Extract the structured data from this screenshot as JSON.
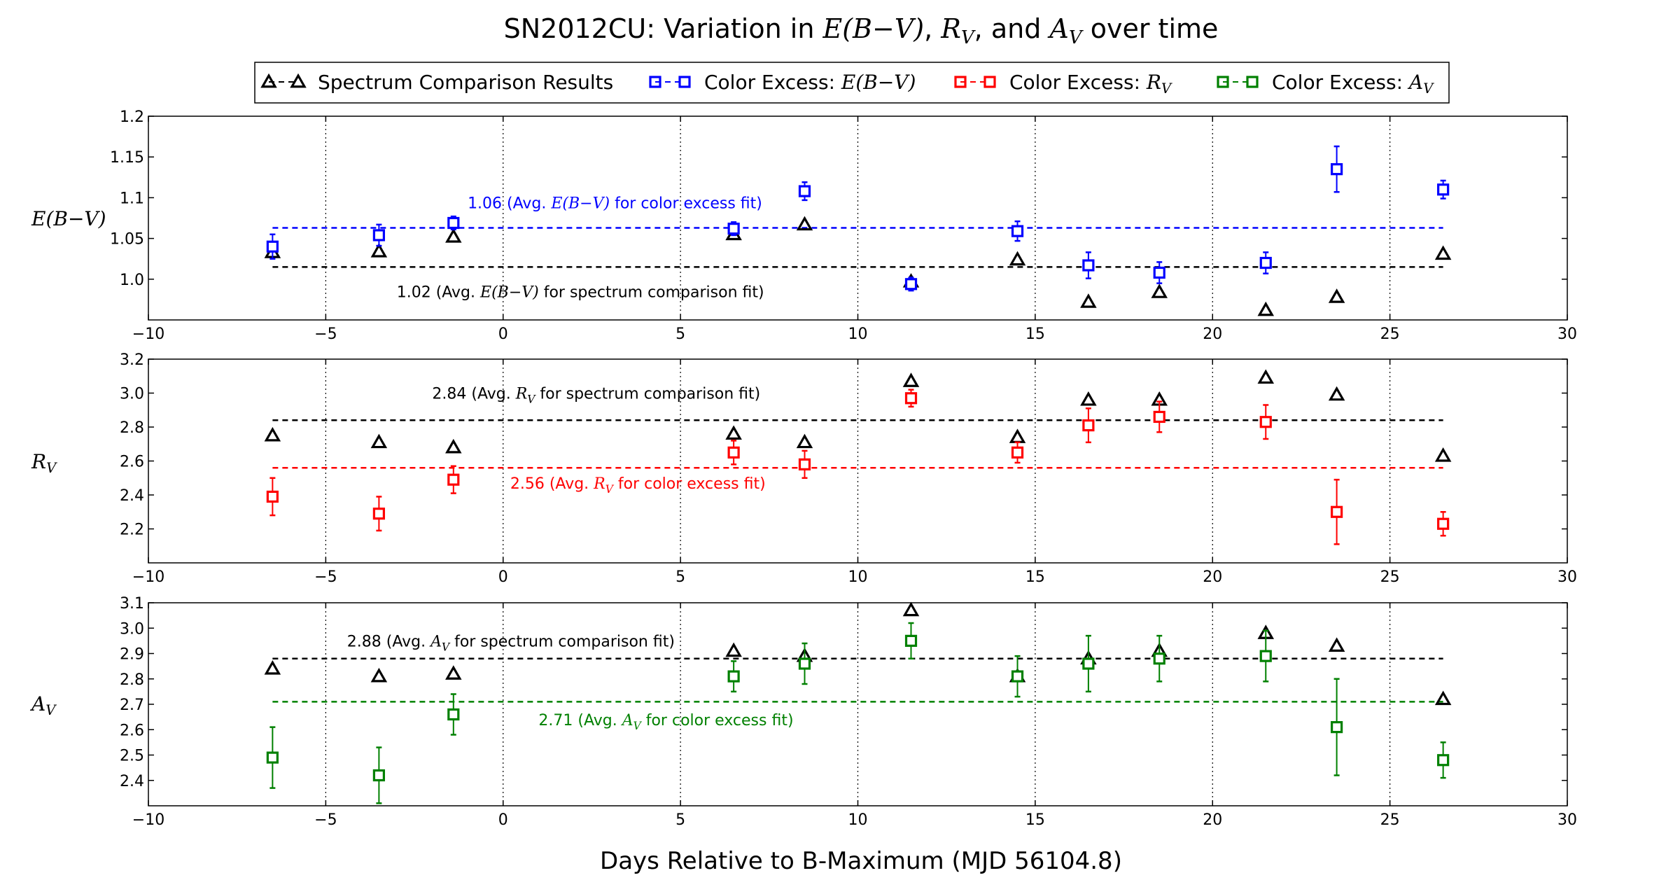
{
  "figure": {
    "title_prefix": "SN2012CU: Variation in ",
    "title_ebv": "E(B−V)",
    "title_sep1": ", ",
    "title_rv_base": "R",
    "title_rv_sub": "V",
    "title_sep2": ", and ",
    "title_av_base": "A",
    "title_av_sub": "V",
    "title_suffix": " over time",
    "xlabel": "Days Relative to B-Maximum (MJD 56104.8)"
  },
  "legend": {
    "entries": [
      {
        "name": "spectrum",
        "text": "Spectrum Comparison Results",
        "math": "",
        "sub": "",
        "color": "#000000",
        "marker": "triangle"
      },
      {
        "name": "ebv",
        "text": "Color Excess: ",
        "math": "E(B−V)",
        "sub": "",
        "color": "#0000ff",
        "marker": "square"
      },
      {
        "name": "rv",
        "text": "Color Excess: ",
        "math": "R",
        "sub": "V",
        "color": "#ff0000",
        "marker": "square"
      },
      {
        "name": "av",
        "text": "Color Excess: ",
        "math": "A",
        "sub": "V",
        "color": "#008000",
        "marker": "square"
      }
    ]
  },
  "chart_data": [
    {
      "type": "scatter",
      "ylabel": "E(B−V)",
      "xlim": [
        -10,
        30
      ],
      "ylim": [
        0.95,
        1.2
      ],
      "xticks": [
        -10,
        -5,
        0,
        5,
        10,
        15,
        20,
        25,
        30
      ],
      "xtick_labels": [
        "−10",
        "−5",
        "0",
        "5",
        "10",
        "15",
        "20",
        "25",
        "30"
      ],
      "yticks": [
        1.0,
        1.05,
        1.1,
        1.15,
        1.2
      ],
      "ytick_labels": [
        "1.0",
        "1.05",
        "1.1",
        "1.15",
        "1.2"
      ],
      "grid_x": true,
      "series": [
        {
          "key": "spectrum",
          "color": "#000000",
          "marker": "triangle",
          "x": [
            -6.5,
            -3.5,
            -1.4,
            6.5,
            8.5,
            11.5,
            14.5,
            16.5,
            18.5,
            21.5,
            23.5,
            26.5
          ],
          "y": [
            1.033,
            1.034,
            1.052,
            1.055,
            1.067,
            0.997,
            1.024,
            0.972,
            0.984,
            0.962,
            0.978,
            1.031
          ]
        },
        {
          "key": "ebv",
          "color": "#0000ff",
          "marker": "square",
          "x": [
            -6.5,
            -3.5,
            -1.4,
            6.5,
            8.5,
            11.5,
            14.5,
            16.5,
            18.5,
            21.5,
            26.5
          ],
          "y": [
            1.04,
            1.054,
            1.069,
            1.062,
            1.108,
            0.994,
            1.059,
            1.017,
            1.008,
            1.02,
            1.11
          ],
          "err": [
            0.015,
            0.013,
            0.008,
            0.008,
            0.011,
            0.008,
            0.012,
            0.016,
            0.013,
            0.013,
            0.011
          ]
        },
        {
          "key": "ebv",
          "color": "#0000ff",
          "marker": "square",
          "x": [
            23.5
          ],
          "y": [
            1.135
          ],
          "err": [
            0.028
          ]
        }
      ],
      "hlines": [
        {
          "y": 1.063,
          "color": "#0000ff",
          "xmin": -6.5,
          "xmax": 26.5,
          "label_value": "1.06",
          "label_pre": " (Avg. ",
          "label_math": "E(B−V)",
          "label_sub": "",
          "label_post": " for color excess fit)",
          "label_x": -1.0,
          "label_y": 1.094
        },
        {
          "y": 1.015,
          "color": "#000000",
          "xmin": -6.5,
          "xmax": 26.5,
          "label_value": "1.02",
          "label_pre": " (Avg. ",
          "label_math": "E(B−V)",
          "label_sub": "",
          "label_post": " for spectrum comparison fit)",
          "label_x": -3.0,
          "label_y": 0.985
        }
      ]
    },
    {
      "type": "scatter",
      "ylabel": "R",
      "ylabel_sub": "V",
      "xlim": [
        -10,
        30
      ],
      "ylim": [
        2.0,
        3.2
      ],
      "xticks": [
        -10,
        -5,
        0,
        5,
        10,
        15,
        20,
        25,
        30
      ],
      "xtick_labels": [
        "−10",
        "−5",
        "0",
        "5",
        "10",
        "15",
        "20",
        "25",
        "30"
      ],
      "yticks": [
        2.2,
        2.4,
        2.6,
        2.8,
        3.0,
        3.2
      ],
      "ytick_labels": [
        "2.2",
        "2.4",
        "2.6",
        "2.8",
        "3.0",
        "3.2"
      ],
      "grid_x": true,
      "series": [
        {
          "key": "spectrum",
          "color": "#000000",
          "marker": "triangle",
          "x": [
            -6.5,
            -3.5,
            -1.4,
            6.5,
            8.5,
            11.5,
            14.5,
            16.5,
            18.5,
            21.5,
            23.5,
            26.5
          ],
          "y": [
            2.75,
            2.71,
            2.68,
            2.76,
            2.71,
            3.07,
            2.74,
            2.96,
            2.96,
            3.09,
            2.99,
            2.63
          ]
        },
        {
          "key": "rv",
          "color": "#ff0000",
          "marker": "square",
          "x": [
            -6.5,
            -3.5,
            -1.4,
            6.5,
            8.5,
            11.5,
            14.5,
            16.5,
            18.5,
            21.5,
            23.5,
            26.5
          ],
          "y": [
            2.39,
            2.29,
            2.49,
            2.65,
            2.58,
            2.97,
            2.65,
            2.81,
            2.86,
            2.83,
            2.3,
            2.23
          ],
          "err": [
            0.11,
            0.1,
            0.08,
            0.07,
            0.08,
            0.05,
            0.06,
            0.1,
            0.09,
            0.1,
            0.19,
            0.07
          ]
        }
      ],
      "hlines": [
        {
          "y": 2.84,
          "color": "#000000",
          "xmin": -6.5,
          "xmax": 26.5,
          "label_value": "2.84",
          "label_pre": " (Avg. ",
          "label_math": "R",
          "label_sub": "V",
          "label_post": " for spectrum comparison fit)",
          "label_x": -2.0,
          "label_y": 3.0
        },
        {
          "y": 2.56,
          "color": "#ff0000",
          "xmin": -6.5,
          "xmax": 26.5,
          "label_value": "2.56",
          "label_pre": " (Avg. ",
          "label_math": "R",
          "label_sub": "V",
          "label_post": " for color excess fit)",
          "label_x": 0.2,
          "label_y": 2.47
        }
      ]
    },
    {
      "type": "scatter",
      "ylabel": "A",
      "ylabel_sub": "V",
      "xlim": [
        -10,
        30
      ],
      "ylim": [
        2.3,
        3.1
      ],
      "xticks": [
        -10,
        -5,
        0,
        5,
        10,
        15,
        20,
        25,
        30
      ],
      "xtick_labels": [
        "−10",
        "−5",
        "0",
        "5",
        "10",
        "15",
        "20",
        "25",
        "30"
      ],
      "yticks": [
        2.4,
        2.5,
        2.6,
        2.7,
        2.8,
        2.9,
        3.0,
        3.1
      ],
      "ytick_labels": [
        "2.4",
        "2.5",
        "2.6",
        "2.7",
        "2.8",
        "2.9",
        "3.0",
        "3.1"
      ],
      "grid_x": true,
      "series": [
        {
          "key": "spectrum",
          "color": "#000000",
          "marker": "triangle",
          "x": [
            -6.5,
            -3.5,
            -1.4,
            6.5,
            8.5,
            11.5,
            14.5,
            16.5,
            18.5,
            21.5,
            23.5,
            26.5
          ],
          "y": [
            2.84,
            2.81,
            2.82,
            2.91,
            2.89,
            3.07,
            2.81,
            2.88,
            2.91,
            2.98,
            2.93,
            2.72
          ]
        },
        {
          "key": "av",
          "color": "#008000",
          "marker": "square",
          "x": [
            -6.5,
            -3.5,
            -1.4,
            6.5,
            8.5,
            11.5,
            14.5,
            16.5,
            18.5,
            21.5,
            23.5,
            26.5
          ],
          "y": [
            2.49,
            2.42,
            2.66,
            2.81,
            2.86,
            2.95,
            2.81,
            2.86,
            2.88,
            2.89,
            2.61,
            2.48
          ],
          "err": [
            0.12,
            0.11,
            0.08,
            0.06,
            0.08,
            0.07,
            0.08,
            0.11,
            0.09,
            0.1,
            0.19,
            0.07
          ]
        }
      ],
      "hlines": [
        {
          "y": 2.88,
          "color": "#000000",
          "xmin": -6.5,
          "xmax": 26.5,
          "label_value": "2.88",
          "label_pre": " (Avg. ",
          "label_math": "A",
          "label_sub": "V",
          "label_post": " for spectrum comparison fit)",
          "label_x": -4.4,
          "label_y": 2.95
        },
        {
          "y": 2.71,
          "color": "#008000",
          "xmin": -6.5,
          "xmax": 26.5,
          "label_value": "2.71",
          "label_pre": " (Avg. ",
          "label_math": "A",
          "label_sub": "V",
          "label_post": " for color excess fit)",
          "label_x": 1.0,
          "label_y": 2.64
        }
      ]
    }
  ]
}
